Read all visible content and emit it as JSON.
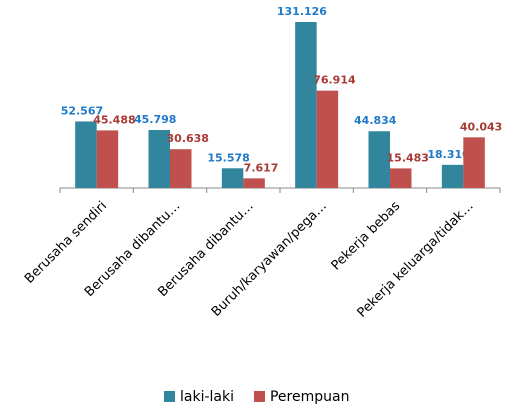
{
  "chart_data": {
    "type": "bar",
    "categories": [
      "Berusaha sendiri",
      "Berusaha dibantu…",
      "Berusaha dibantu…",
      "Buruh/karyawan/pega…",
      "Pekerja bebas",
      "Pekerja keluarga/tidak…"
    ],
    "series": [
      {
        "name": "laki-laki",
        "color": "#31859c",
        "label_color": "#1f7ac8",
        "values": [
          52567,
          45798,
          15578,
          131126,
          44834,
          18310
        ],
        "value_labels": [
          "52.567",
          "45.798",
          "15.578",
          "131.126",
          "44.834",
          "18.310"
        ]
      },
      {
        "name": "Perempuan",
        "color": "#c0504d",
        "label_color": "#a83a36",
        "values": [
          45488,
          30638,
          7617,
          76914,
          15483,
          40043
        ],
        "value_labels": [
          "45.488",
          "30.638",
          "7.617",
          "76.914",
          "15.483",
          "40.043"
        ]
      }
    ],
    "legend": "bottom"
  }
}
